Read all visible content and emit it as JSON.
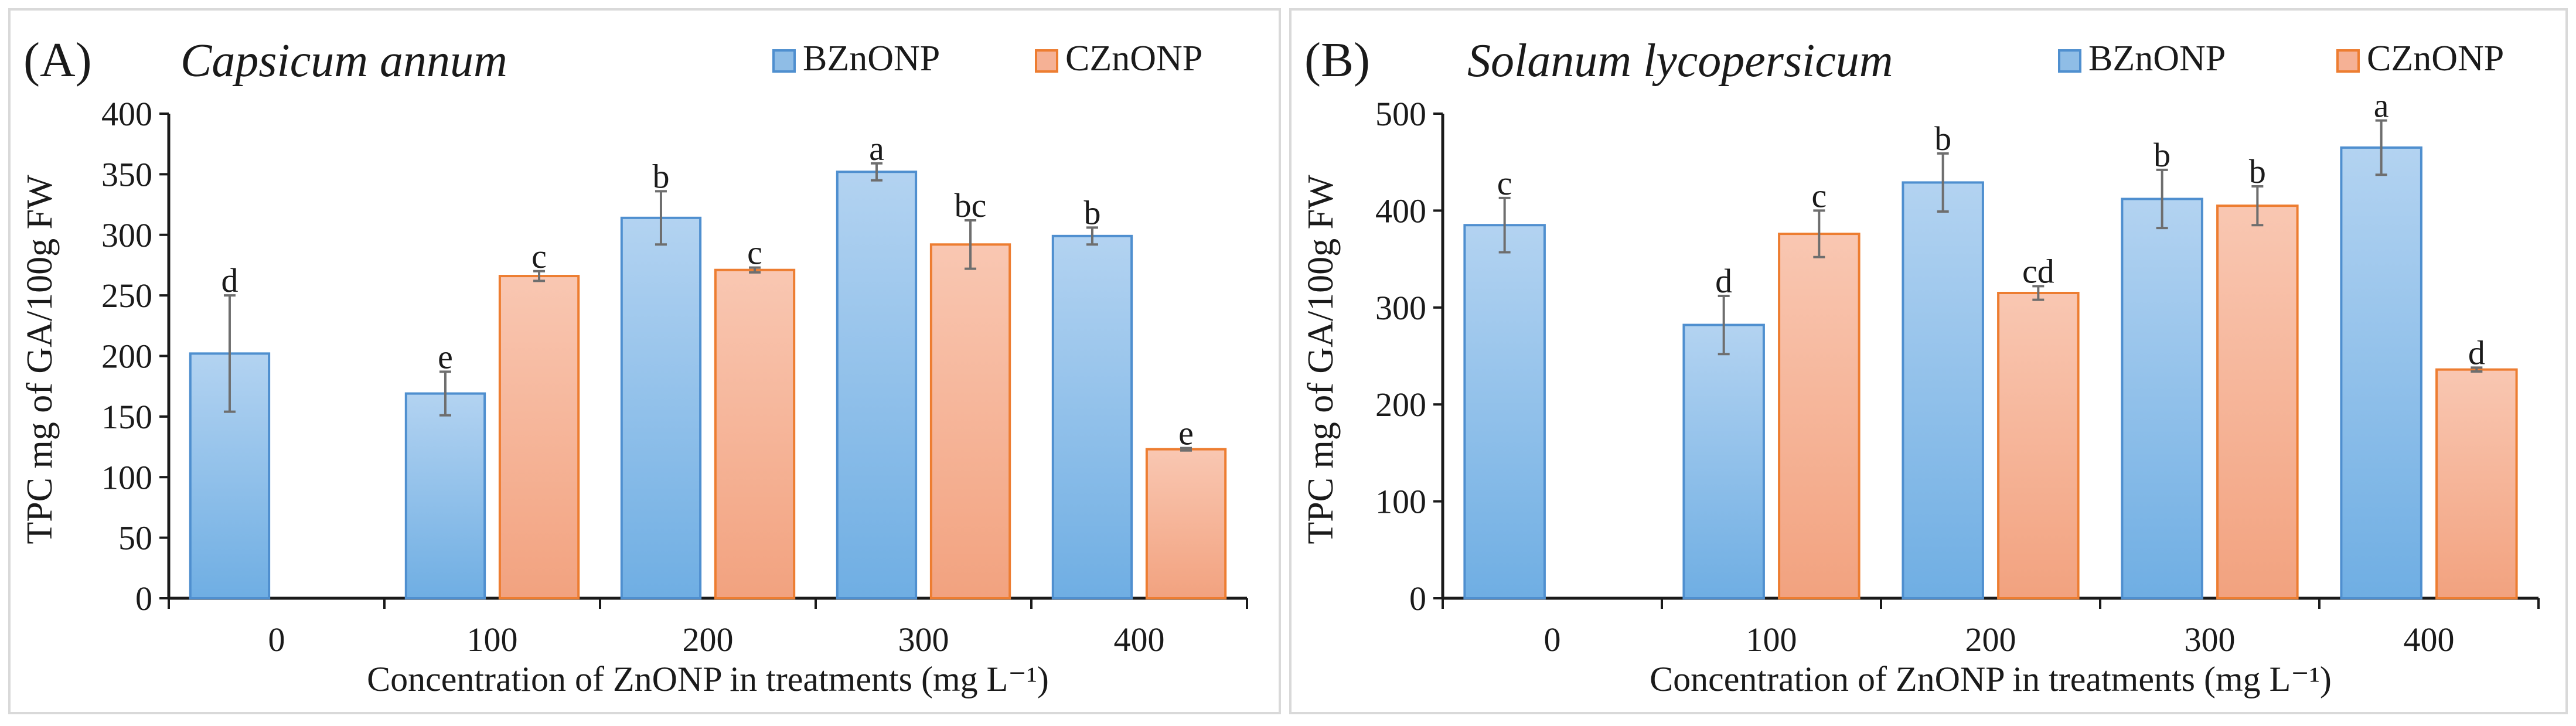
{
  "chart_data": [
    {
      "type": "bar",
      "panel_label": "(A)",
      "title": "Capsicum annum",
      "categories": [
        "0",
        "100",
        "200",
        "300",
        "400"
      ],
      "xlabel": "Concentration of  ZnONP in treatments (mg L⁻¹)",
      "ylabel": "TPC mg of GA/100g FW",
      "ylim": [
        0,
        400
      ],
      "yticks": [
        0,
        50,
        100,
        150,
        200,
        250,
        300,
        350,
        400
      ],
      "grid": false,
      "legend_position": "top-right",
      "series": [
        {
          "name": "BZnONP",
          "color": "#8fbde6",
          "edge": "#4f8fcf",
          "values": [
            202,
            169,
            314,
            352,
            299
          ],
          "errors": [
            48,
            18,
            22,
            7,
            7
          ],
          "letters": [
            "d",
            "e",
            "b",
            "a",
            "b"
          ]
        },
        {
          "name": "CZnONP",
          "color": "#f5b195",
          "edge": "#ed7d31",
          "values": [
            null,
            266,
            271,
            292,
            123
          ],
          "errors": [
            null,
            4,
            2,
            20,
            1
          ],
          "letters": [
            null,
            "c",
            "c",
            "bc",
            "e"
          ]
        }
      ]
    },
    {
      "type": "bar",
      "panel_label": "(B)",
      "title": "Solanum lycopersicum",
      "categories": [
        "0",
        "100",
        "200",
        "300",
        "400"
      ],
      "xlabel": "Concentration of  ZnONP in treatments (mg L⁻¹)",
      "ylabel": "TPC mg of GA/100g FW",
      "ylim": [
        0,
        500
      ],
      "yticks": [
        0,
        100,
        200,
        300,
        400,
        500
      ],
      "grid": false,
      "legend_position": "top-right",
      "series": [
        {
          "name": "BZnONP",
          "color": "#8fbde6",
          "edge": "#4f8fcf",
          "values": [
            385,
            282,
            429,
            412,
            465
          ],
          "errors": [
            28,
            30,
            30,
            30,
            28
          ],
          "letters": [
            "c",
            "d",
            "b",
            "b",
            "a"
          ]
        },
        {
          "name": "CZnONP",
          "color": "#f5b195",
          "edge": "#ed7d31",
          "values": [
            null,
            376,
            315,
            405,
            236
          ],
          "errors": [
            null,
            24,
            7,
            20,
            2
          ],
          "letters": [
            null,
            "c",
            "cd",
            "b",
            "d"
          ]
        }
      ]
    }
  ]
}
